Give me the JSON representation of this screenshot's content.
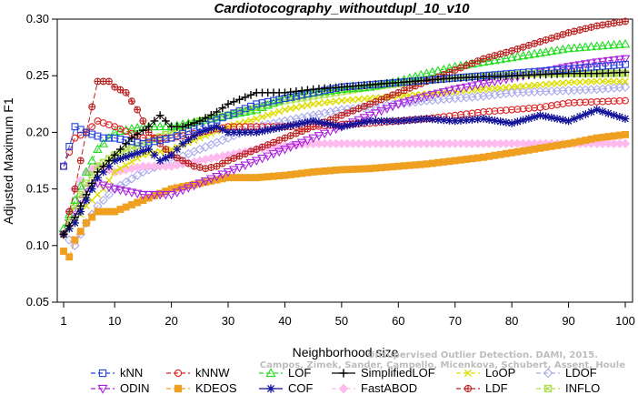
{
  "chart_data": {
    "type": "line",
    "title": "Cardiotocography_withoutdupl_10_v10",
    "xlabel": "Neighborhood size",
    "ylabel": "Adjusted Maximum F1",
    "xlim": [
      1,
      100
    ],
    "ylim": [
      0.05,
      0.3
    ],
    "x_ticks": [
      1,
      10,
      20,
      30,
      40,
      50,
      60,
      70,
      80,
      90,
      100
    ],
    "y_ticks": [
      0.05,
      0.1,
      0.15,
      0.2,
      0.25,
      0.3
    ],
    "x_tick_labels": [
      "1",
      "10",
      "20",
      "30",
      "40",
      "50",
      "60",
      "70",
      "80",
      "90",
      "100"
    ],
    "y_tick_labels": [
      "0.05",
      "0.10",
      "0.15",
      "0.20",
      "0.25",
      "0.30"
    ],
    "grid": false,
    "legend_position": "bottom",
    "watermark": [
      "Campos, Zimek, Sander, Campello, Micenkova, Schubert, Assent, Houle",
      "Unsupervised Outlier Detection. DAMI, 2015."
    ],
    "series": [
      {
        "name": "kNN",
        "color": "#2244dd",
        "marker": "square",
        "dash": "6,3",
        "points": [
          [
            1,
            0.17
          ],
          [
            3,
            0.205
          ],
          [
            5,
            0.2
          ],
          [
            8,
            0.195
          ],
          [
            10,
            0.195
          ],
          [
            15,
            0.19
          ],
          [
            20,
            0.195
          ],
          [
            25,
            0.205
          ],
          [
            30,
            0.215
          ],
          [
            35,
            0.225
          ],
          [
            40,
            0.23
          ],
          [
            45,
            0.235
          ],
          [
            50,
            0.24
          ],
          [
            55,
            0.242
          ],
          [
            60,
            0.244
          ],
          [
            65,
            0.246
          ],
          [
            70,
            0.248
          ],
          [
            75,
            0.25
          ],
          [
            80,
            0.252
          ],
          [
            85,
            0.254
          ],
          [
            90,
            0.256
          ],
          [
            95,
            0.258
          ],
          [
            100,
            0.26
          ]
        ]
      },
      {
        "name": "kNNW",
        "color": "#dd2222",
        "marker": "circle",
        "dash": "6,3",
        "points": [
          [
            1,
            0.17
          ],
          [
            3,
            0.195
          ],
          [
            5,
            0.2
          ],
          [
            7,
            0.21
          ],
          [
            10,
            0.205
          ],
          [
            15,
            0.195
          ],
          [
            20,
            0.195
          ],
          [
            25,
            0.2
          ],
          [
            30,
            0.205
          ],
          [
            35,
            0.205
          ],
          [
            40,
            0.205
          ],
          [
            45,
            0.205
          ],
          [
            50,
            0.207
          ],
          [
            55,
            0.208
          ],
          [
            60,
            0.21
          ],
          [
            65,
            0.212
          ],
          [
            70,
            0.215
          ],
          [
            75,
            0.218
          ],
          [
            80,
            0.22
          ],
          [
            85,
            0.222
          ],
          [
            90,
            0.226
          ],
          [
            95,
            0.227
          ],
          [
            100,
            0.228
          ]
        ]
      },
      {
        "name": "LOF",
        "color": "#22dd22",
        "marker": "triangle",
        "dash": "6,3",
        "points": [
          [
            1,
            0.115
          ],
          [
            3,
            0.14
          ],
          [
            5,
            0.165
          ],
          [
            7,
            0.185
          ],
          [
            10,
            0.2
          ],
          [
            15,
            0.205
          ],
          [
            20,
            0.205
          ],
          [
            25,
            0.21
          ],
          [
            30,
            0.215
          ],
          [
            35,
            0.22
          ],
          [
            40,
            0.23
          ],
          [
            45,
            0.235
          ],
          [
            50,
            0.238
          ],
          [
            55,
            0.24
          ],
          [
            60,
            0.245
          ],
          [
            65,
            0.252
          ],
          [
            70,
            0.258
          ],
          [
            75,
            0.262
          ],
          [
            80,
            0.266
          ],
          [
            85,
            0.27
          ],
          [
            90,
            0.274
          ],
          [
            95,
            0.276
          ],
          [
            100,
            0.278
          ]
        ]
      },
      {
        "name": "SimplifiedLOF",
        "color": "#000000",
        "marker": "plus",
        "dash": "",
        "points": [
          [
            1,
            0.11
          ],
          [
            3,
            0.125
          ],
          [
            5,
            0.145
          ],
          [
            7,
            0.165
          ],
          [
            10,
            0.18
          ],
          [
            13,
            0.195
          ],
          [
            16,
            0.205
          ],
          [
            18,
            0.215
          ],
          [
            20,
            0.205
          ],
          [
            22,
            0.205
          ],
          [
            25,
            0.21
          ],
          [
            28,
            0.218
          ],
          [
            30,
            0.225
          ],
          [
            35,
            0.235
          ],
          [
            40,
            0.235
          ],
          [
            45,
            0.238
          ],
          [
            50,
            0.24
          ],
          [
            55,
            0.242
          ],
          [
            60,
            0.244
          ],
          [
            65,
            0.246
          ],
          [
            70,
            0.248
          ],
          [
            75,
            0.249
          ],
          [
            80,
            0.25
          ],
          [
            85,
            0.251
          ],
          [
            90,
            0.252
          ],
          [
            95,
            0.252
          ],
          [
            100,
            0.253
          ]
        ]
      },
      {
        "name": "LoOP",
        "color": "#dddd00",
        "marker": "x",
        "dash": "6,3",
        "points": [
          [
            1,
            0.11
          ],
          [
            3,
            0.12
          ],
          [
            5,
            0.135
          ],
          [
            8,
            0.15
          ],
          [
            10,
            0.165
          ],
          [
            15,
            0.18
          ],
          [
            20,
            0.185
          ],
          [
            25,
            0.195
          ],
          [
            30,
            0.205
          ],
          [
            35,
            0.212
          ],
          [
            40,
            0.22
          ],
          [
            45,
            0.225
          ],
          [
            50,
            0.228
          ],
          [
            55,
            0.23
          ],
          [
            60,
            0.232
          ],
          [
            65,
            0.234
          ],
          [
            70,
            0.236
          ],
          [
            75,
            0.238
          ],
          [
            80,
            0.24
          ],
          [
            85,
            0.242
          ],
          [
            90,
            0.244
          ],
          [
            95,
            0.245
          ],
          [
            100,
            0.245
          ]
        ]
      },
      {
        "name": "LDOF",
        "color": "#aaaaee",
        "marker": "diamond",
        "dash": "6,3",
        "points": [
          [
            1,
            0.11
          ],
          [
            3,
            0.1
          ],
          [
            5,
            0.12
          ],
          [
            7,
            0.135
          ],
          [
            10,
            0.15
          ],
          [
            15,
            0.165
          ],
          [
            20,
            0.175
          ],
          [
            25,
            0.185
          ],
          [
            30,
            0.195
          ],
          [
            35,
            0.205
          ],
          [
            40,
            0.21
          ],
          [
            45,
            0.215
          ],
          [
            50,
            0.22
          ],
          [
            55,
            0.222
          ],
          [
            60,
            0.225
          ],
          [
            65,
            0.228
          ],
          [
            70,
            0.23
          ],
          [
            75,
            0.232
          ],
          [
            80,
            0.235
          ],
          [
            85,
            0.236
          ],
          [
            90,
            0.237
          ],
          [
            95,
            0.238
          ],
          [
            100,
            0.24
          ]
        ]
      },
      {
        "name": "ODIN",
        "color": "#aa22dd",
        "marker": "invtriangle",
        "dash": "6,3",
        "points": [
          [
            1,
            0.11
          ],
          [
            3,
            0.13
          ],
          [
            5,
            0.15
          ],
          [
            7,
            0.155
          ],
          [
            10,
            0.15
          ],
          [
            15,
            0.145
          ],
          [
            20,
            0.145
          ],
          [
            25,
            0.155
          ],
          [
            30,
            0.165
          ],
          [
            35,
            0.175
          ],
          [
            40,
            0.185
          ],
          [
            45,
            0.195
          ],
          [
            50,
            0.205
          ],
          [
            55,
            0.215
          ],
          [
            60,
            0.225
          ],
          [
            65,
            0.232
          ],
          [
            70,
            0.238
          ],
          [
            75,
            0.243
          ],
          [
            80,
            0.248
          ],
          [
            85,
            0.253
          ],
          [
            90,
            0.258
          ],
          [
            95,
            0.262
          ],
          [
            100,
            0.265
          ]
        ]
      },
      {
        "name": "KDEOS",
        "color": "#f0a020",
        "marker": "filledsquare",
        "dash": "6,3",
        "points": [
          [
            1,
            0.095
          ],
          [
            2,
            0.09
          ],
          [
            3,
            0.105
          ],
          [
            5,
            0.12
          ],
          [
            7,
            0.13
          ],
          [
            10,
            0.13
          ],
          [
            15,
            0.14
          ],
          [
            20,
            0.15
          ],
          [
            25,
            0.155
          ],
          [
            30,
            0.16
          ],
          [
            35,
            0.16
          ],
          [
            40,
            0.162
          ],
          [
            45,
            0.165
          ],
          [
            50,
            0.167
          ],
          [
            55,
            0.168
          ],
          [
            60,
            0.17
          ],
          [
            65,
            0.172
          ],
          [
            70,
            0.175
          ],
          [
            75,
            0.178
          ],
          [
            80,
            0.182
          ],
          [
            85,
            0.186
          ],
          [
            90,
            0.19
          ],
          [
            95,
            0.195
          ],
          [
            100,
            0.198
          ]
        ]
      },
      {
        "name": "COF",
        "color": "#111199",
        "marker": "star",
        "dash": "",
        "points": [
          [
            1,
            0.11
          ],
          [
            3,
            0.12
          ],
          [
            5,
            0.14
          ],
          [
            7,
            0.16
          ],
          [
            10,
            0.175
          ],
          [
            13,
            0.18
          ],
          [
            16,
            0.185
          ],
          [
            18,
            0.175
          ],
          [
            20,
            0.18
          ],
          [
            22,
            0.19
          ],
          [
            25,
            0.2
          ],
          [
            28,
            0.205
          ],
          [
            30,
            0.2
          ],
          [
            35,
            0.2
          ],
          [
            40,
            0.205
          ],
          [
            45,
            0.21
          ],
          [
            50,
            0.205
          ],
          [
            55,
            0.21
          ],
          [
            60,
            0.21
          ],
          [
            65,
            0.212
          ],
          [
            70,
            0.21
          ],
          [
            75,
            0.212
          ],
          [
            80,
            0.208
          ],
          [
            85,
            0.215
          ],
          [
            90,
            0.21
          ],
          [
            95,
            0.22
          ],
          [
            100,
            0.212
          ]
        ]
      },
      {
        "name": "FastABOD",
        "color": "#ffbbee",
        "marker": "filleddiamond",
        "dash": "6,3",
        "points": [
          [
            1,
            0.11
          ],
          [
            3,
            0.15
          ],
          [
            5,
            0.165
          ],
          [
            7,
            0.17
          ],
          [
            10,
            0.165
          ],
          [
            15,
            0.17
          ],
          [
            20,
            0.17
          ],
          [
            25,
            0.175
          ],
          [
            30,
            0.18
          ],
          [
            35,
            0.185
          ],
          [
            40,
            0.188
          ],
          [
            45,
            0.19
          ],
          [
            50,
            0.19
          ],
          [
            55,
            0.19
          ],
          [
            60,
            0.19
          ],
          [
            65,
            0.19
          ],
          [
            70,
            0.19
          ],
          [
            75,
            0.19
          ],
          [
            80,
            0.19
          ],
          [
            85,
            0.19
          ],
          [
            90,
            0.19
          ],
          [
            95,
            0.19
          ],
          [
            100,
            0.19
          ]
        ]
      },
      {
        "name": "LDF",
        "color": "#bb2222",
        "marker": "crosscircle",
        "dash": "6,3",
        "points": [
          [
            1,
            0.11
          ],
          [
            3,
            0.15
          ],
          [
            5,
            0.2
          ],
          [
            7,
            0.245
          ],
          [
            9,
            0.245
          ],
          [
            10,
            0.24
          ],
          [
            12,
            0.235
          ],
          [
            14,
            0.22
          ],
          [
            16,
            0.2
          ],
          [
            18,
            0.19
          ],
          [
            20,
            0.18
          ],
          [
            22,
            0.175
          ],
          [
            24,
            0.17
          ],
          [
            26,
            0.168
          ],
          [
            28,
            0.17
          ],
          [
            30,
            0.175
          ],
          [
            35,
            0.185
          ],
          [
            40,
            0.195
          ],
          [
            45,
            0.205
          ],
          [
            50,
            0.215
          ],
          [
            55,
            0.225
          ],
          [
            60,
            0.235
          ],
          [
            65,
            0.245
          ],
          [
            70,
            0.255
          ],
          [
            75,
            0.265
          ],
          [
            80,
            0.272
          ],
          [
            85,
            0.28
          ],
          [
            90,
            0.288
          ],
          [
            95,
            0.294
          ],
          [
            100,
            0.298
          ]
        ]
      },
      {
        "name": "INFLO",
        "color": "#aadd44",
        "marker": "squarecross",
        "dash": "6,3",
        "points": [
          [
            1,
            0.11
          ],
          [
            3,
            0.135
          ],
          [
            5,
            0.155
          ],
          [
            7,
            0.17
          ],
          [
            10,
            0.18
          ],
          [
            15,
            0.19
          ],
          [
            20,
            0.2
          ],
          [
            25,
            0.21
          ],
          [
            30,
            0.215
          ],
          [
            35,
            0.222
          ],
          [
            40,
            0.228
          ],
          [
            45,
            0.232
          ],
          [
            50,
            0.236
          ],
          [
            55,
            0.24
          ],
          [
            60,
            0.243
          ],
          [
            65,
            0.246
          ],
          [
            70,
            0.248
          ],
          [
            75,
            0.25
          ],
          [
            80,
            0.251
          ],
          [
            85,
            0.252
          ],
          [
            90,
            0.252
          ],
          [
            95,
            0.252
          ],
          [
            100,
            0.252
          ]
        ]
      }
    ]
  }
}
